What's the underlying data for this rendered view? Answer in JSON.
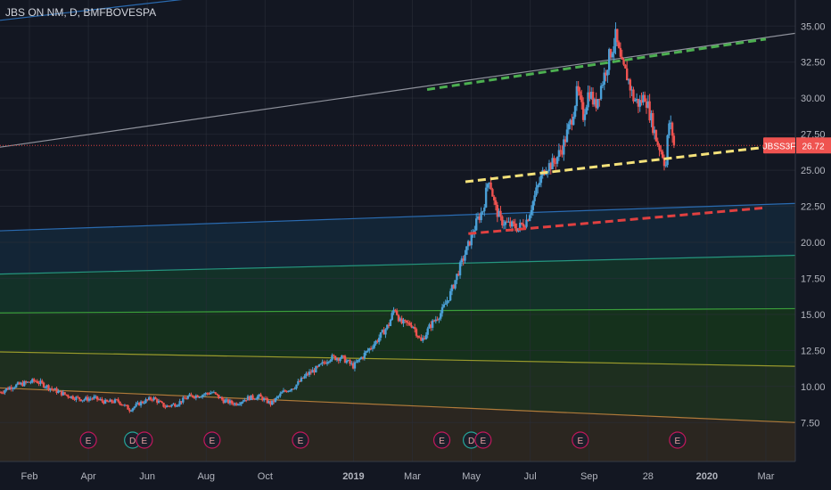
{
  "chart_data": {
    "type": "candlestick",
    "title": "JBS ON NM, D, BMFBOVESPA",
    "ticker": "JBSS3F",
    "last_price": 26.72,
    "last_price_label": "26.72",
    "ylim": [
      5.6,
      36.5
    ],
    "y_ticks": [
      7.5,
      10.0,
      12.5,
      15.0,
      17.5,
      20.0,
      22.5,
      25.0,
      27.5,
      30.0,
      32.5,
      35.0
    ],
    "y_tick_labels": [
      "7.50",
      "10.00",
      "12.50",
      "15.00",
      "17.50",
      "20.00",
      "22.50",
      "25.00",
      "27.50",
      "30.00",
      "32.50",
      "35.00"
    ],
    "x_ticks": [
      {
        "label": "Feb",
        "month": 1
      },
      {
        "label": "Apr",
        "month": 3
      },
      {
        "label": "Jun",
        "month": 5
      },
      {
        "label": "Aug",
        "month": 7
      },
      {
        "label": "Oct",
        "month": 9
      },
      {
        "label": "2019",
        "month": 12
      },
      {
        "label": "Mar",
        "month": 14
      },
      {
        "label": "May",
        "month": 16
      },
      {
        "label": "Jul",
        "month": 18
      },
      {
        "label": "Sep",
        "month": 20
      },
      {
        "label": "28",
        "month": 22
      },
      {
        "label": "2020",
        "month": 24
      },
      {
        "label": "Mar",
        "month": 26
      }
    ],
    "x_range_months": [
      0.0,
      27.0
    ],
    "last_bar_month": 22.9,
    "price_path": [
      [
        0.0,
        9.6
      ],
      [
        0.4,
        10.0
      ],
      [
        0.8,
        10.2
      ],
      [
        1.2,
        10.4
      ],
      [
        1.6,
        10.0
      ],
      [
        2.0,
        9.6
      ],
      [
        2.4,
        9.3
      ],
      [
        2.8,
        9.1
      ],
      [
        3.2,
        9.2
      ],
      [
        3.6,
        8.9
      ],
      [
        4.0,
        9.0
      ],
      [
        4.4,
        8.4
      ],
      [
        4.8,
        8.9
      ],
      [
        5.2,
        9.2
      ],
      [
        5.6,
        8.6
      ],
      [
        6.0,
        8.8
      ],
      [
        6.4,
        9.3
      ],
      [
        6.8,
        9.4
      ],
      [
        7.2,
        9.6
      ],
      [
        7.6,
        9.0
      ],
      [
        8.0,
        8.8
      ],
      [
        8.4,
        9.2
      ],
      [
        8.8,
        9.3
      ],
      [
        9.2,
        8.8
      ],
      [
        9.6,
        9.6
      ],
      [
        10.0,
        10.0
      ],
      [
        10.4,
        10.8
      ],
      [
        10.8,
        11.3
      ],
      [
        11.2,
        12.0
      ],
      [
        11.6,
        12.0
      ],
      [
        12.0,
        11.4
      ],
      [
        12.4,
        12.3
      ],
      [
        12.8,
        13.2
      ],
      [
        13.2,
        14.3
      ],
      [
        13.4,
        15.5
      ],
      [
        13.6,
        14.4
      ],
      [
        14.0,
        14.3
      ],
      [
        14.3,
        13.1
      ],
      [
        14.6,
        14.2
      ],
      [
        15.0,
        15.2
      ],
      [
        15.3,
        16.5
      ],
      [
        15.6,
        18.2
      ],
      [
        15.9,
        19.8
      ],
      [
        16.2,
        21.5
      ],
      [
        16.4,
        22.3
      ],
      [
        16.6,
        24.6
      ],
      [
        16.8,
        22.5
      ],
      [
        17.0,
        21.5
      ],
      [
        17.3,
        21.2
      ],
      [
        17.6,
        21.0
      ],
      [
        17.9,
        21.6
      ],
      [
        18.2,
        23.5
      ],
      [
        18.5,
        25.2
      ],
      [
        18.8,
        25.5
      ],
      [
        19.1,
        26.6
      ],
      [
        19.4,
        28.5
      ],
      [
        19.6,
        30.5
      ],
      [
        19.8,
        28.8
      ],
      [
        20.0,
        30.6
      ],
      [
        20.2,
        29.4
      ],
      [
        20.5,
        31.5
      ],
      [
        20.7,
        33.0
      ],
      [
        20.9,
        34.2
      ],
      [
        21.1,
        32.2
      ],
      [
        21.3,
        31.5
      ],
      [
        21.5,
        30.0
      ],
      [
        21.7,
        29.6
      ],
      [
        21.9,
        30.2
      ],
      [
        22.1,
        28.6
      ],
      [
        22.3,
        27.0
      ],
      [
        22.5,
        26.1
      ],
      [
        22.6,
        25.2
      ],
      [
        22.7,
        28.4
      ],
      [
        22.8,
        27.8
      ],
      [
        22.9,
        26.72
      ]
    ],
    "channel_lines": [
      {
        "color": "#8f929c",
        "x1": 0.0,
        "y1": 26.6,
        "x2": 27.0,
        "y2": 34.5
      },
      {
        "color": "#2a6bb1",
        "x1": 0.0,
        "y1": 20.8,
        "x2": 27.0,
        "y2": 22.7
      },
      {
        "color": "#25967f",
        "x1": 0.0,
        "y1": 17.8,
        "x2": 27.0,
        "y2": 19.1
      },
      {
        "color": "#3b9e3b",
        "x1": 0.0,
        "y1": 15.1,
        "x2": 27.0,
        "y2": 15.4
      },
      {
        "color": "#9a9a2c",
        "x1": 0.0,
        "y1": 12.4,
        "x2": 27.0,
        "y2": 11.4
      },
      {
        "color": "#b07a3a",
        "x1": 0.0,
        "y1": 9.9,
        "x2": 27.0,
        "y2": 7.5
      }
    ],
    "zone_fills": [
      "#132638",
      "#133329",
      "#15331c",
      "#1f3020",
      "#2a2b1c",
      "#2b2620"
    ],
    "dashed_trendlines": [
      {
        "color": "#4caf50",
        "x1": 14.5,
        "y1": 30.6,
        "x2": 26.0,
        "y2": 34.1
      },
      {
        "color": "#f5e27a",
        "x1": 15.8,
        "y1": 24.2,
        "x2": 26.0,
        "y2": 26.6
      },
      {
        "color": "#e04040",
        "x1": 15.9,
        "y1": 20.6,
        "x2": 26.0,
        "y2": 22.4
      }
    ],
    "top_blue_line": {
      "color": "#2a6bb1",
      "x1": 0.0,
      "y1": 35.4,
      "x2": 9.0,
      "y2": 37.5
    },
    "horizontal_price_line_color": "#e04040",
    "up_color": "#4a9fd6",
    "down_color": "#ef5350",
    "earnings_markers": [
      {
        "label": "E",
        "month": 3.0
      },
      {
        "label": "D",
        "month": 4.5
      },
      {
        "label": "E",
        "month": 4.9
      },
      {
        "label": "E",
        "month": 7.2
      },
      {
        "label": "E",
        "month": 10.2
      },
      {
        "label": "E",
        "month": 15.0
      },
      {
        "label": "D",
        "month": 16.0
      },
      {
        "label": "E",
        "month": 16.4
      },
      {
        "label": "E",
        "month": 19.7
      },
      {
        "label": "E",
        "month": 23.0
      }
    ]
  }
}
